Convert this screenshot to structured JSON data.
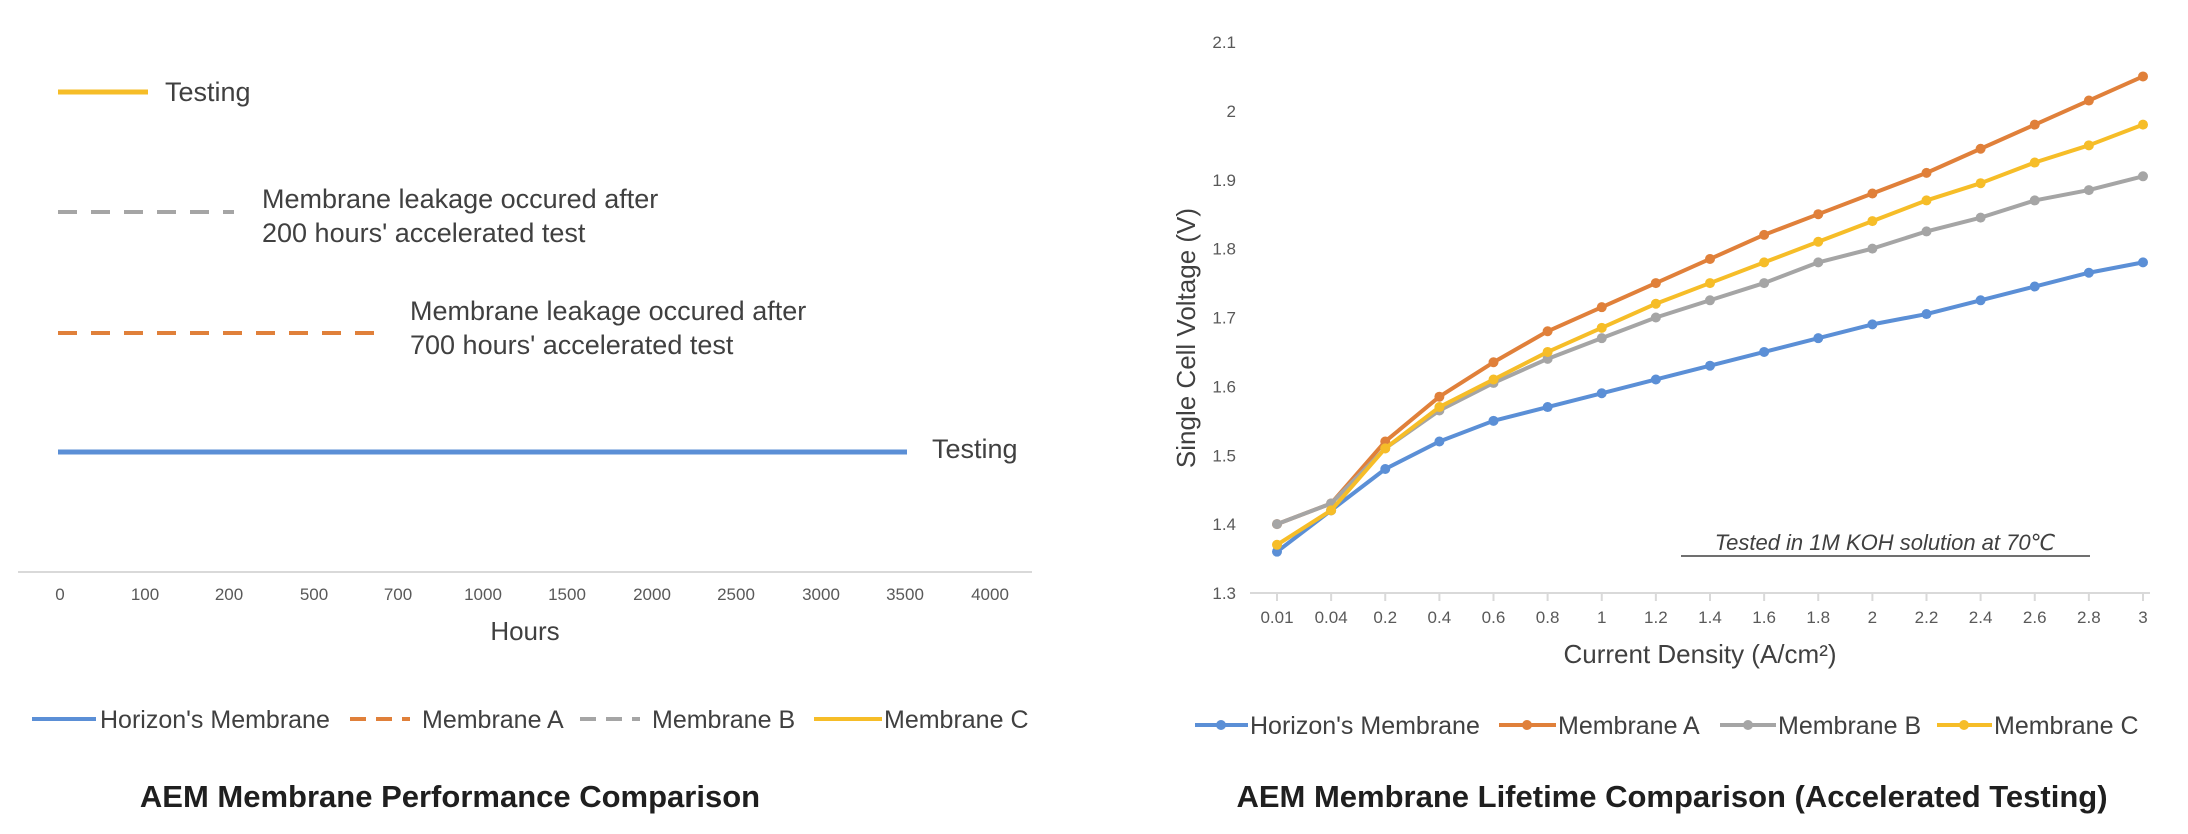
{
  "chart_data": [
    {
      "type": "line",
      "caption": "AEM Membrane Performance Comparison",
      "xlabel": "Hours",
      "categories": [
        "0",
        "100",
        "200",
        "500",
        "700",
        "1000",
        "1500",
        "2000",
        "2500",
        "3000",
        "3500",
        "4000"
      ],
      "series": [
        {
          "name": "Horizon's Membrane",
          "color": "#5b8fd6",
          "style": "solid",
          "x_end": "3500",
          "end_label": "Testing"
        },
        {
          "name": "Membrane A",
          "color": "#e0803a",
          "style": "dashed",
          "x_end": "700",
          "end_label": "Membrane leakage occured after 700 hours' accelerated test"
        },
        {
          "name": "Membrane B",
          "color": "#a5a5a5",
          "style": "dashed",
          "x_end": "200",
          "end_label": "Membrane leakage occured after 200 hours' accelerated test"
        },
        {
          "name": "Membrane C",
          "color": "#f6bd28",
          "style": "solid",
          "x_end": "100",
          "end_label": "Testing"
        }
      ],
      "annotations": {
        "c_label": "Testing",
        "b_line1": "Membrane leakage occured after",
        "b_line2": "200 hours' accelerated test",
        "a_line1": "Membrane leakage occured after",
        "a_line2": "700 hours' accelerated test",
        "h_label": "Testing"
      },
      "legend": "bottom",
      "grid": false
    },
    {
      "type": "line",
      "caption": "AEM Membrane Lifetime Comparison (Accelerated Testing)",
      "xlabel": "Current Density (A/cm²)",
      "ylabel": "Single Cell Voltage (V)",
      "note": "Tested in 1M KOH solution at 70℃",
      "ylim": [
        1.3,
        2.1
      ],
      "yticks": [
        "1.3",
        "1.4",
        "1.5",
        "1.6",
        "1.7",
        "1.8",
        "1.9",
        "2",
        "2.1"
      ],
      "categories": [
        "0.01",
        "0.04",
        "0.2",
        "0.4",
        "0.6",
        "0.8",
        "1",
        "1.2",
        "1.4",
        "1.6",
        "1.8",
        "2",
        "2.2",
        "2.4",
        "2.6",
        "2.8",
        "3"
      ],
      "series": [
        {
          "name": "Horizon's Membrane",
          "color": "#5b8fd6",
          "values": [
            1.36,
            1.42,
            1.48,
            1.52,
            1.55,
            1.57,
            1.59,
            1.61,
            1.63,
            1.65,
            1.67,
            1.69,
            1.705,
            1.725,
            1.745,
            1.765,
            1.78
          ]
        },
        {
          "name": "Membrane A",
          "color": "#e0803a",
          "values": [
            1.4,
            1.43,
            1.52,
            1.585,
            1.635,
            1.68,
            1.715,
            1.75,
            1.785,
            1.82,
            1.85,
            1.88,
            1.91,
            1.945,
            1.98,
            2.015,
            2.05
          ]
        },
        {
          "name": "Membrane B",
          "color": "#a5a5a5",
          "values": [
            1.4,
            1.43,
            1.51,
            1.565,
            1.605,
            1.64,
            1.67,
            1.7,
            1.725,
            1.75,
            1.78,
            1.8,
            1.825,
            1.845,
            1.87,
            1.885,
            1.905
          ]
        },
        {
          "name": "Membrane C",
          "color": "#f6bd28",
          "values": [
            1.37,
            1.42,
            1.51,
            1.57,
            1.61,
            1.65,
            1.685,
            1.72,
            1.75,
            1.78,
            1.81,
            1.84,
            1.87,
            1.895,
            1.925,
            1.95,
            1.98
          ]
        }
      ],
      "legend": "bottom",
      "grid": false
    }
  ]
}
